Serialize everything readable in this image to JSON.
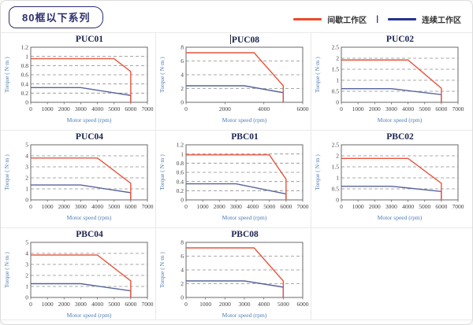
{
  "page": {
    "title_badge": "80框以下系列"
  },
  "legend": {
    "items": [
      {
        "label": "间歇工作区",
        "color_key": "legend_red"
      },
      {
        "label": "连续工作区",
        "color_key": "legend_blue"
      }
    ],
    "separator": "|"
  },
  "colors": {
    "red": "#e8543e",
    "blue": "#55639b",
    "legend_red": "#f0482a",
    "legend_blue": "#26338f",
    "title": "#1c2451",
    "axis_label": "#4d7db5",
    "tick": "#3f3f3f",
    "grid": "#8f8f8f",
    "box": "#6a6a6a",
    "cell_border": "#e9e9e9"
  },
  "chart_data": [
    {
      "type": "line",
      "title": "PUC01",
      "title_caret": false,
      "xlabel": "Motor speed (rpm)",
      "ylabel": "Torque ( N·m )",
      "xlim": [
        0,
        7000
      ],
      "ylim": [
        0,
        1.2
      ],
      "x_ticks": [
        0,
        1000,
        2000,
        3000,
        4000,
        5000,
        6000,
        7000
      ],
      "y_ticks": [
        "0",
        "0.2",
        "0.4",
        "0.6",
        "0.8",
        "1",
        "1.2"
      ],
      "series": [
        {
          "name": "间歇工作区",
          "color_key": "red",
          "points": [
            [
              0,
              0.95
            ],
            [
              5000,
              0.95
            ],
            [
              6000,
              0.67
            ],
            [
              6000,
              0
            ]
          ]
        },
        {
          "name": "连续工作区",
          "color_key": "blue",
          "points": [
            [
              0,
              0.32
            ],
            [
              3000,
              0.32
            ],
            [
              6000,
              0.15
            ],
            [
              6000,
              0
            ]
          ]
        }
      ]
    },
    {
      "type": "line",
      "title": "PUC08",
      "title_caret": true,
      "xlabel": "Motor speed (rpm)",
      "ylabel": "Torque ( N·m )",
      "xlim": [
        0,
        6000
      ],
      "ylim": [
        0,
        8
      ],
      "x_ticks": [
        0,
        2000,
        4000,
        6000
      ],
      "y_ticks": [
        "0",
        "2",
        "4",
        "6",
        "8"
      ],
      "series": [
        {
          "name": "间歇工作区",
          "color_key": "red",
          "points": [
            [
              0,
              7.2
            ],
            [
              3500,
              7.2
            ],
            [
              5000,
              2.4
            ],
            [
              5000,
              0
            ]
          ]
        },
        {
          "name": "连续工作区",
          "color_key": "blue",
          "points": [
            [
              0,
              2.4
            ],
            [
              3000,
              2.4
            ],
            [
              5000,
              1.4
            ],
            [
              5000,
              0
            ]
          ]
        }
      ]
    },
    {
      "type": "line",
      "title": "PUC02",
      "title_caret": false,
      "xlabel": "Motor speed (rpm)",
      "ylabel": "Torque ( N·m )",
      "xlim": [
        0,
        7000
      ],
      "ylim": [
        0,
        2.5
      ],
      "x_ticks": [
        0,
        1000,
        2000,
        3000,
        4000,
        5000,
        6000,
        7000
      ],
      "y_ticks": [
        "0",
        "0.5",
        "1",
        "1.5",
        "2",
        "2.5"
      ],
      "series": [
        {
          "name": "间歇工作区",
          "color_key": "red",
          "points": [
            [
              0,
              1.92
            ],
            [
              4000,
              1.92
            ],
            [
              6000,
              0.64
            ],
            [
              6000,
              0
            ]
          ]
        },
        {
          "name": "连续工作区",
          "color_key": "blue",
          "points": [
            [
              0,
              0.62
            ],
            [
              3000,
              0.62
            ],
            [
              6000,
              0.35
            ],
            [
              6000,
              0
            ]
          ]
        }
      ]
    },
    {
      "type": "line",
      "title": "PUC04",
      "title_caret": false,
      "xlabel": "Motor speed (rpm)",
      "ylabel": "Torque ( N·m )",
      "xlim": [
        0,
        7000
      ],
      "ylim": [
        0,
        5
      ],
      "x_ticks": [
        0,
        1000,
        2000,
        3000,
        4000,
        5000,
        6000,
        7000
      ],
      "y_ticks": [
        "0",
        "1",
        "2",
        "3",
        "4",
        "5"
      ],
      "series": [
        {
          "name": "间歇工作区",
          "color_key": "red",
          "points": [
            [
              0,
              3.8
            ],
            [
              4000,
              3.8
            ],
            [
              6000,
              1.5
            ],
            [
              6000,
              0
            ]
          ]
        },
        {
          "name": "连续工作区",
          "color_key": "blue",
          "points": [
            [
              0,
              1.35
            ],
            [
              3000,
              1.35
            ],
            [
              6000,
              0.65
            ],
            [
              6000,
              0
            ]
          ]
        }
      ]
    },
    {
      "type": "line",
      "title": "PBC01",
      "title_caret": false,
      "xlabel": "Motor speed (rpm)",
      "ylabel": "Torque ( N·m )",
      "xlim": [
        0,
        7000
      ],
      "ylim": [
        0,
        1.2
      ],
      "x_ticks": [
        0,
        1000,
        2000,
        3000,
        4000,
        5000,
        6000,
        7000
      ],
      "y_ticks": [
        "0",
        "0.2",
        "0.4",
        "0.6",
        "0.8",
        "1",
        "1.2"
      ],
      "series": [
        {
          "name": "间歇工作区",
          "color_key": "red",
          "points": [
            [
              0,
              0.98
            ],
            [
              5000,
              0.98
            ],
            [
              6000,
              0.45
            ],
            [
              6000,
              0
            ]
          ]
        },
        {
          "name": "连续工作区",
          "color_key": "blue",
          "points": [
            [
              0,
              0.35
            ],
            [
              3000,
              0.35
            ],
            [
              6000,
              0.13
            ],
            [
              6000,
              0
            ]
          ]
        }
      ]
    },
    {
      "type": "line",
      "title": "PBC02",
      "title_caret": false,
      "xlabel": "Motor speed (rpm)",
      "ylabel": "Torque ( N·m )",
      "xlim": [
        0,
        7000
      ],
      "ylim": [
        0,
        2.5
      ],
      "x_ticks": [
        0,
        1000,
        2000,
        3000,
        4000,
        5000,
        6000,
        7000
      ],
      "y_ticks": [
        "0",
        "0.5",
        "1",
        "1.5",
        "2",
        "2.5"
      ],
      "series": [
        {
          "name": "间歇工作区",
          "color_key": "red",
          "points": [
            [
              0,
              1.88
            ],
            [
              4000,
              1.88
            ],
            [
              6000,
              0.75
            ],
            [
              6000,
              0
            ]
          ]
        },
        {
          "name": "连续工作区",
          "color_key": "blue",
          "points": [
            [
              0,
              0.62
            ],
            [
              3000,
              0.62
            ],
            [
              6000,
              0.38
            ],
            [
              6000,
              0
            ]
          ]
        }
      ]
    },
    {
      "type": "line",
      "title": "PBC04",
      "title_caret": false,
      "xlabel": "Motor speed (rpm)",
      "ylabel": "Torque ( N·m )",
      "xlim": [
        0,
        7000
      ],
      "ylim": [
        0,
        5
      ],
      "x_ticks": [
        0,
        1000,
        2000,
        3000,
        4000,
        5000,
        6000,
        7000
      ],
      "y_ticks": [
        "0",
        "1",
        "2",
        "3",
        "4",
        "5"
      ],
      "series": [
        {
          "name": "间歇工作区",
          "color_key": "red",
          "points": [
            [
              0,
              3.85
            ],
            [
              4000,
              3.85
            ],
            [
              6000,
              1.5
            ],
            [
              6000,
              0
            ]
          ]
        },
        {
          "name": "连续工作区",
          "color_key": "blue",
          "points": [
            [
              0,
              1.25
            ],
            [
              3000,
              1.25
            ],
            [
              6000,
              0.6
            ],
            [
              6000,
              0
            ]
          ]
        }
      ]
    },
    {
      "type": "line",
      "title": "PBC08",
      "title_caret": false,
      "xlabel": "Motor speed (rpm)",
      "ylabel": "Torque ( N·m )",
      "xlim": [
        0,
        6000
      ],
      "ylim": [
        0,
        8
      ],
      "x_ticks": [
        0,
        1000,
        2000,
        3000,
        4000,
        5000,
        6000
      ],
      "y_ticks": [
        "0",
        "2",
        "4",
        "6",
        "8"
      ],
      "series": [
        {
          "name": "间歇工作区",
          "color_key": "red",
          "points": [
            [
              0,
              7.2
            ],
            [
              3500,
              7.2
            ],
            [
              5000,
              2.4
            ],
            [
              5000,
              0
            ]
          ]
        },
        {
          "name": "连续工作区",
          "color_key": "blue",
          "points": [
            [
              0,
              2.4
            ],
            [
              3000,
              2.4
            ],
            [
              5000,
              1.5
            ],
            [
              5000,
              0
            ]
          ]
        }
      ]
    }
  ]
}
